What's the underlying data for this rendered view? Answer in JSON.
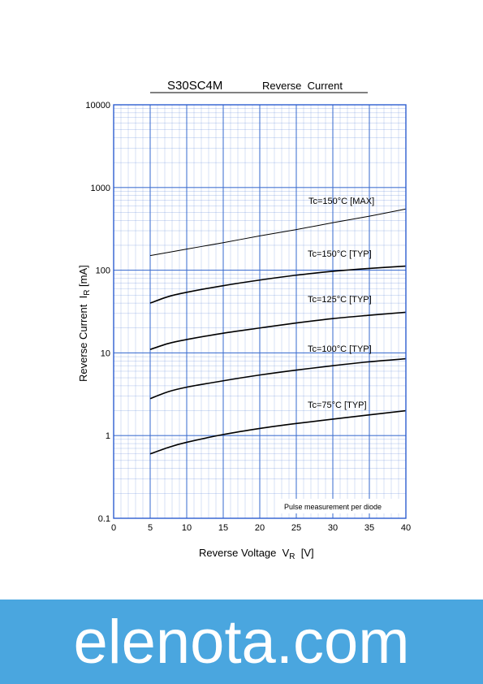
{
  "chart_data": {
    "type": "line",
    "title": "S30SC4M",
    "subtitle": "Reverse  Current",
    "ylabel": "Reverse Current  I",
    "ylabel_sub": "R",
    "ylabel_unit": " [mA]",
    "xlabel": "Reverse Voltage  V",
    "xlabel_sub": "R",
    "xlabel_unit": "  [V]",
    "xlim": [
      0,
      40
    ],
    "ylim": [
      0.1,
      10000
    ],
    "yscale": "log",
    "grid": true,
    "x_ticks": [
      0,
      5,
      10,
      15,
      20,
      25,
      30,
      35,
      40
    ],
    "y_ticks": [
      0.1,
      1,
      10,
      100,
      1000,
      10000
    ],
    "y_tick_labels": [
      "0.1",
      "1",
      "10",
      "100",
      "1000",
      "10000"
    ],
    "note": "Pulse measurement per diode",
    "series": [
      {
        "name": "Tc=150°C [MAX]",
        "x": [
          5,
          10,
          15,
          20,
          25,
          30,
          35,
          40
        ],
        "y": [
          150,
          180,
          215,
          260,
          310,
          375,
          450,
          550
        ]
      },
      {
        "name": "Tc=150°C [TYP]",
        "x": [
          5,
          7.5,
          10,
          15,
          20,
          25,
          30,
          35,
          40
        ],
        "y": [
          40,
          48,
          54,
          65,
          76,
          87,
          97,
          105,
          112
        ]
      },
      {
        "name": "Tc=125°C [TYP]",
        "x": [
          5,
          7.5,
          10,
          15,
          20,
          25,
          30,
          35,
          40
        ],
        "y": [
          11,
          13,
          14.5,
          17.3,
          20,
          23,
          26,
          28.5,
          31
        ]
      },
      {
        "name": "Tc=100°C [TYP]",
        "x": [
          5,
          7.5,
          10,
          15,
          20,
          25,
          30,
          35,
          40
        ],
        "y": [
          2.8,
          3.4,
          3.85,
          4.6,
          5.4,
          6.2,
          7,
          7.8,
          8.5
        ]
      },
      {
        "name": "Tc=75°C [TYP]",
        "x": [
          5,
          7.5,
          10,
          15,
          20,
          25,
          30,
          35,
          40
        ],
        "y": [
          0.6,
          0.72,
          0.83,
          1.03,
          1.22,
          1.4,
          1.58,
          1.78,
          2.0
        ]
      }
    ]
  },
  "watermark": {
    "text": "elenota.com",
    "color": "#4aa6df"
  },
  "colors": {
    "grid": "#3f6fd0",
    "axis": "#2d5ecf",
    "line": "#000000"
  }
}
